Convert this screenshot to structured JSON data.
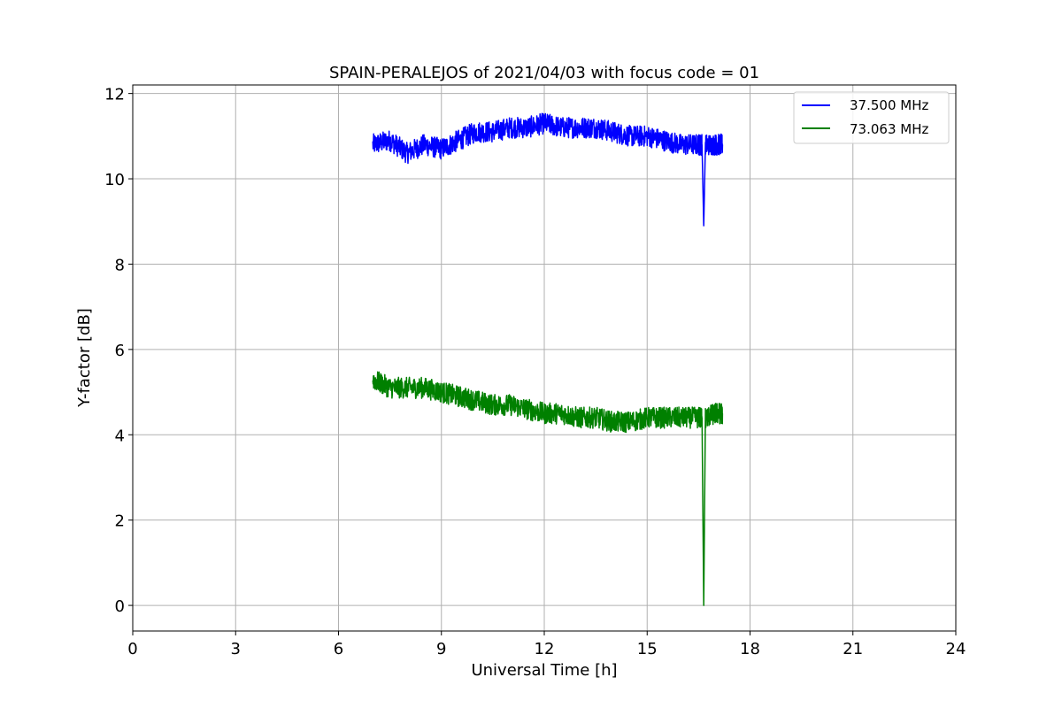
{
  "chart_data": {
    "type": "line",
    "title": "SPAIN-PERALEJOS of 2021/04/03 with focus code = 01",
    "xlabel": "Universal Time [h]",
    "ylabel": "Y-factor [dB]",
    "xlim": [
      0,
      24
    ],
    "ylim": [
      -0.6,
      12.2
    ],
    "xticks": [
      0,
      3,
      6,
      9,
      12,
      15,
      18,
      21,
      24
    ],
    "xtick_labels": [
      "0",
      "3",
      "6",
      "9",
      "12",
      "15",
      "18",
      "21",
      "24"
    ],
    "yticks": [
      0,
      2,
      4,
      6,
      8,
      10,
      12
    ],
    "ytick_labels": [
      "0",
      "2",
      "4",
      "6",
      "8",
      "10",
      "12"
    ],
    "grid": true,
    "legend_position": "top-right",
    "series": [
      {
        "name": "37.500 MHz",
        "color": "#0000ff",
        "x": [
          7.0,
          7.5,
          8.0,
          8.5,
          9.0,
          9.5,
          10.0,
          10.5,
          11.0,
          11.5,
          12.0,
          12.5,
          13.0,
          13.5,
          14.0,
          14.5,
          15.0,
          15.5,
          16.0,
          16.5,
          16.6,
          16.65,
          16.7,
          17.0,
          17.2
        ],
        "values": [
          10.8,
          10.9,
          10.6,
          10.8,
          10.7,
          10.9,
          11.1,
          11.1,
          11.2,
          11.2,
          11.3,
          11.2,
          11.2,
          11.2,
          11.1,
          11.0,
          11.0,
          10.9,
          10.8,
          10.8,
          10.8,
          8.9,
          10.8,
          10.8,
          10.8
        ],
        "noise": 0.25
      },
      {
        "name": "73.063 MHz",
        "color": "#008000",
        "x": [
          7.0,
          7.5,
          8.0,
          8.5,
          9.0,
          9.5,
          10.0,
          10.5,
          11.0,
          11.5,
          12.0,
          12.5,
          13.0,
          13.5,
          14.0,
          14.5,
          15.0,
          15.5,
          16.0,
          16.5,
          16.6,
          16.65,
          16.7,
          17.0,
          17.2
        ],
        "values": [
          5.3,
          5.1,
          5.1,
          5.1,
          5.0,
          4.9,
          4.8,
          4.7,
          4.7,
          4.6,
          4.5,
          4.5,
          4.4,
          4.4,
          4.3,
          4.3,
          4.4,
          4.4,
          4.4,
          4.4,
          4.4,
          0.0,
          4.4,
          4.5,
          4.5
        ],
        "noise": 0.25
      }
    ]
  }
}
